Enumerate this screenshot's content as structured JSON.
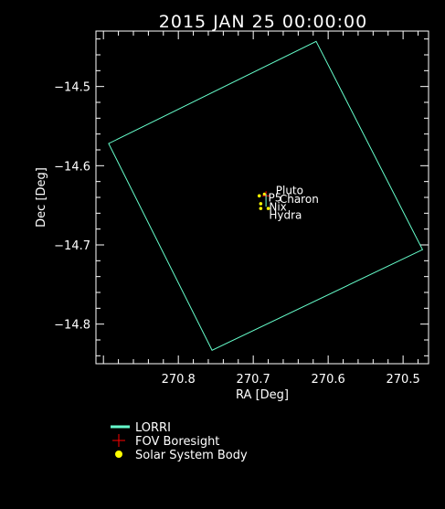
{
  "chart_data": {
    "type": "scatter",
    "title": "2015 JAN 25 00:00:00",
    "xlabel": "RA [Deg]",
    "ylabel": "Dec [Deg]",
    "xlim": [
      270.91,
      270.466
    ],
    "ylim": [
      -14.85,
      -14.43
    ],
    "x_ticks": [
      {
        "value": 270.8,
        "label": "270.8"
      },
      {
        "value": 270.7,
        "label": "270.7"
      },
      {
        "value": 270.6,
        "label": "270.6"
      },
      {
        "value": 270.5,
        "label": "270.5"
      }
    ],
    "y_ticks": [
      {
        "value": -14.5,
        "label": "−14.5"
      },
      {
        "value": -14.6,
        "label": "−14.6"
      },
      {
        "value": -14.7,
        "label": "−14.7"
      },
      {
        "value": -14.8,
        "label": "−14.8"
      }
    ],
    "fov": {
      "name": "LORRI",
      "color": "#66ffcc",
      "corners": [
        [
          270.616,
          -14.443
        ],
        [
          270.474,
          -14.706
        ],
        [
          270.755,
          -14.833
        ],
        [
          270.893,
          -14.572
        ]
      ]
    },
    "boresight": {
      "ra": 270.683,
      "dec": -14.638,
      "color": "#ff0000"
    },
    "bodies": [
      {
        "name": "Pluto",
        "ra": 270.685,
        "dec": -14.636
      },
      {
        "name": "Charon",
        "ra": 270.692,
        "dec": -14.638
      },
      {
        "name": "Nix",
        "ra": 270.69,
        "dec": -14.648
      },
      {
        "name": "Hydra",
        "ra": 270.68,
        "dec": -14.654
      },
      {
        "name": "",
        "ra": 270.69,
        "dec": -14.654
      }
    ],
    "body_color": "#ffff00",
    "body_labels": [
      {
        "text": "Pluto",
        "ra": 270.67,
        "dec": -14.636
      },
      {
        "text": "Charon",
        "ra": 270.665,
        "dec": -14.647
      },
      {
        "text": "P5",
        "ra": 270.68,
        "dec": -14.645
      },
      {
        "text": "Nix",
        "ra": 270.679,
        "dec": -14.657
      },
      {
        "text": "Hydra",
        "ra": 270.679,
        "dec": -14.667
      }
    ]
  },
  "legend": {
    "items": [
      {
        "label": "LORRI",
        "symbol": "line",
        "color": "#66ffcc"
      },
      {
        "label": "FOV Boresight",
        "symbol": "plus",
        "color": "#ff0000"
      },
      {
        "label": "Solar System Body",
        "symbol": "dot",
        "color": "#ffff00"
      }
    ]
  }
}
